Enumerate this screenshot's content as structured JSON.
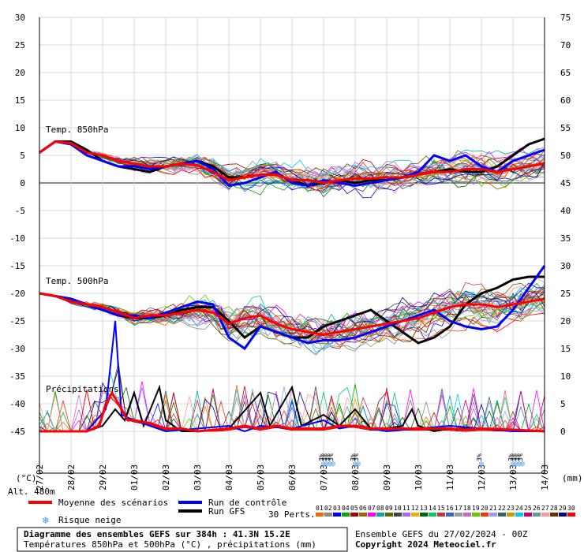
{
  "chart_data": {
    "type": "line",
    "title": "Diagramme des ensembles GEFS sur 384h : 41.3N 15.2E",
    "subtitle": "Températures 850hPa et 500hPa (°C) , précipitations (mm)",
    "run_info": "Ensemble GEFS du 27/02/2024 - 00Z",
    "copyright": "Copyright 2024 Meteociel.fr",
    "altitude": "Alt. 480m",
    "left_unit": "(°C)",
    "right_unit": "(mm)",
    "left_ticks": [
      "30",
      "25",
      "20",
      "15",
      "10",
      "5",
      "0",
      "-5",
      "-10",
      "-15",
      "-20",
      "-25",
      "-30",
      "-35",
      "-40",
      "-45"
    ],
    "right_ticks": [
      "75",
      "70",
      "65",
      "60",
      "55",
      "50",
      "45",
      "40",
      "35",
      "30",
      "25",
      "20",
      "15",
      "10",
      "5",
      "0"
    ],
    "ylim_temp": [
      -45,
      30
    ],
    "dates": [
      "27/02",
      "28/02",
      "29/02",
      "01/03",
      "02/03",
      "03/03",
      "04/03",
      "05/03",
      "06/03",
      "07/03",
      "08/03",
      "09/03",
      "10/03",
      "11/03",
      "12/03",
      "13/03",
      "14/03"
    ],
    "panel_labels": {
      "t850": "Temp. 850hPa",
      "t500": "Temp. 500hPa",
      "precip": "Précipitations"
    },
    "legend": {
      "mean": "Moyenne des scénarios",
      "control": "Run de contrôle",
      "gfs": "Run GFS",
      "snow": "Risque neige",
      "perts": "30 Perts."
    },
    "perturbation_numbers": [
      "01",
      "02",
      "03",
      "04",
      "05",
      "06",
      "07",
      "08",
      "09",
      "10",
      "11",
      "12",
      "13",
      "14",
      "15",
      "16",
      "17",
      "18",
      "19",
      "20",
      "21",
      "22",
      "23",
      "24",
      "25",
      "26",
      "27",
      "28",
      "29",
      "30"
    ],
    "perturbation_colors": [
      "#ff6600",
      "#888888",
      "#0000ff",
      "#00aa00",
      "#aa0000",
      "#996600",
      "#ff00ff",
      "#00aaaa",
      "#666600",
      "#444444",
      "#aa66ff",
      "#ffaa00",
      "#006600",
      "#00cc66",
      "#cc3333",
      "#3366cc",
      "#999999",
      "#cc66cc",
      "#66cc00",
      "#ff3300",
      "#9999ff",
      "#336666",
      "#cc9900",
      "#00ccff",
      "#cc0066",
      "#669999",
      "#ff9999",
      "#663300",
      "#000099",
      "#ff0000"
    ],
    "snow_badge": "3%",
    "snow_days": [
      9.0,
      9.1,
      9.2,
      9.3,
      10.0,
      10.1,
      14.0,
      15.0,
      15.1,
      15.2,
      15.3
    ],
    "series": [
      {
        "name": "Moyenne des scénarios",
        "color": "#ff0000",
        "t850": [
          [
            0,
            5.5
          ],
          [
            0.5,
            7.5
          ],
          [
            1,
            7.2
          ],
          [
            1.5,
            5.5
          ],
          [
            2,
            5
          ],
          [
            2.5,
            4
          ],
          [
            3,
            3.5
          ],
          [
            3.5,
            3
          ],
          [
            4,
            3
          ],
          [
            4.5,
            3.5
          ],
          [
            5,
            3.2
          ],
          [
            5.5,
            2
          ],
          [
            6,
            0.5
          ],
          [
            6.5,
            1
          ],
          [
            7,
            1.5
          ],
          [
            7.5,
            1.5
          ],
          [
            8,
            0.5
          ],
          [
            8.5,
            0.5
          ],
          [
            9,
            0
          ],
          [
            9.5,
            0.5
          ],
          [
            10,
            0.8
          ],
          [
            10.5,
            0.8
          ],
          [
            11,
            1
          ],
          [
            11.5,
            1
          ],
          [
            12,
            1.5
          ],
          [
            12.5,
            2
          ],
          [
            13,
            2
          ],
          [
            13.5,
            2.5
          ],
          [
            14,
            2.5
          ],
          [
            14.5,
            2
          ],
          [
            15,
            2.5
          ],
          [
            15.5,
            3
          ],
          [
            16,
            3.5
          ]
        ],
        "t500": [
          [
            0,
            -20
          ],
          [
            0.5,
            -20.5
          ],
          [
            1,
            -21.5
          ],
          [
            1.5,
            -22
          ],
          [
            2,
            -22.5
          ],
          [
            2.5,
            -23.5
          ],
          [
            3,
            -24.5
          ],
          [
            3.5,
            -24
          ],
          [
            4,
            -24
          ],
          [
            4.5,
            -23.5
          ],
          [
            5,
            -23
          ],
          [
            5.5,
            -23.5
          ],
          [
            6,
            -25.5
          ],
          [
            6.5,
            -24.5
          ],
          [
            7,
            -24
          ],
          [
            7.5,
            -25.5
          ],
          [
            8,
            -26.5
          ],
          [
            8.5,
            -27
          ],
          [
            9,
            -27.5
          ],
          [
            9.5,
            -27
          ],
          [
            10,
            -26.5
          ],
          [
            10.5,
            -26
          ],
          [
            11,
            -25.5
          ],
          [
            11.5,
            -25
          ],
          [
            12,
            -24.5
          ],
          [
            12.5,
            -23.5
          ],
          [
            13,
            -22.5
          ],
          [
            13.5,
            -22
          ],
          [
            14,
            -22
          ],
          [
            14.5,
            -22.5
          ],
          [
            15,
            -22
          ],
          [
            15.5,
            -21.5
          ],
          [
            16,
            -21
          ]
        ],
        "precip": [
          [
            0,
            0
          ],
          [
            1,
            0
          ],
          [
            1.5,
            0
          ],
          [
            1.9,
            1
          ],
          [
            2.1,
            5
          ],
          [
            2.3,
            7
          ],
          [
            2.5,
            5
          ],
          [
            2.8,
            2
          ],
          [
            3,
            2
          ],
          [
            3.5,
            1.5
          ],
          [
            4,
            0.5
          ],
          [
            4.5,
            0.5
          ],
          [
            5,
            0
          ],
          [
            6,
            0.5
          ],
          [
            6.5,
            1
          ],
          [
            7,
            0.5
          ],
          [
            7.5,
            1
          ],
          [
            8,
            0.5
          ],
          [
            9,
            0.5
          ],
          [
            9.5,
            1
          ],
          [
            10,
            1
          ],
          [
            10.5,
            0.5
          ],
          [
            11,
            0.5
          ],
          [
            12,
            0.5
          ],
          [
            12.5,
            0.5
          ],
          [
            13,
            0.5
          ],
          [
            13.5,
            0.3
          ],
          [
            14,
            0.5
          ],
          [
            15,
            0.3
          ],
          [
            16,
            0
          ]
        ]
      },
      {
        "name": "Run de contrôle",
        "color": "#0000ff",
        "t850": [
          [
            0,
            5.5
          ],
          [
            0.5,
            7.5
          ],
          [
            1,
            7
          ],
          [
            1.5,
            5
          ],
          [
            2,
            4
          ],
          [
            2.5,
            3
          ],
          [
            3,
            3
          ],
          [
            3.5,
            2.5
          ],
          [
            4,
            3
          ],
          [
            4.5,
            3.5
          ],
          [
            5,
            4
          ],
          [
            5.5,
            2.5
          ],
          [
            6,
            -0.5
          ],
          [
            6.5,
            0
          ],
          [
            7,
            1
          ],
          [
            7.5,
            2
          ],
          [
            8,
            0
          ],
          [
            8.5,
            -0.5
          ],
          [
            9,
            0.5
          ],
          [
            9.5,
            0
          ],
          [
            10,
            -0.5
          ],
          [
            10.5,
            0
          ],
          [
            11,
            0.5
          ],
          [
            11.5,
            1
          ],
          [
            12,
            2
          ],
          [
            12.5,
            5
          ],
          [
            13,
            4
          ],
          [
            13.5,
            5
          ],
          [
            14,
            3
          ],
          [
            14.5,
            2
          ],
          [
            15,
            4
          ],
          [
            15.5,
            5
          ],
          [
            16,
            6
          ]
        ],
        "t500": [
          [
            0,
            -20
          ],
          [
            0.5,
            -20.5
          ],
          [
            1,
            -21
          ],
          [
            1.5,
            -22
          ],
          [
            2,
            -23
          ],
          [
            2.5,
            -24
          ],
          [
            3,
            -24
          ],
          [
            3.5,
            -24.5
          ],
          [
            4,
            -23.5
          ],
          [
            4.5,
            -22.5
          ],
          [
            5,
            -21.5
          ],
          [
            5.5,
            -22
          ],
          [
            6,
            -28
          ],
          [
            6.5,
            -30
          ],
          [
            7,
            -26
          ],
          [
            7.5,
            -27
          ],
          [
            8,
            -28
          ],
          [
            8.5,
            -29
          ],
          [
            9,
            -28.5
          ],
          [
            9.5,
            -28.5
          ],
          [
            10,
            -28
          ],
          [
            10.5,
            -27
          ],
          [
            11,
            -26
          ],
          [
            11.5,
            -25
          ],
          [
            12,
            -24
          ],
          [
            12.5,
            -23
          ],
          [
            13,
            -25
          ],
          [
            13.5,
            -26
          ],
          [
            14,
            -26.5
          ],
          [
            14.5,
            -26
          ],
          [
            15,
            -23
          ],
          [
            15.5,
            -19
          ],
          [
            16,
            -15
          ]
        ],
        "precip": [
          [
            0,
            0
          ],
          [
            1.5,
            0
          ],
          [
            2.1,
            4
          ],
          [
            2.4,
            20
          ],
          [
            2.6,
            3
          ],
          [
            3,
            2
          ],
          [
            3.5,
            1
          ],
          [
            4,
            0
          ],
          [
            5,
            0.5
          ],
          [
            6,
            1
          ],
          [
            6.5,
            0
          ],
          [
            7,
            1
          ],
          [
            8,
            0.5
          ],
          [
            9,
            2
          ],
          [
            9.5,
            0.5
          ],
          [
            10,
            1
          ],
          [
            11,
            0
          ],
          [
            12,
            0.5
          ],
          [
            13,
            1
          ],
          [
            14,
            0.5
          ],
          [
            15,
            0
          ],
          [
            16,
            0
          ]
        ]
      },
      {
        "name": "Run GFS",
        "color": "#000000",
        "t850": [
          [
            0,
            5.5
          ],
          [
            0.5,
            7.5
          ],
          [
            1,
            7.5
          ],
          [
            1.5,
            6
          ],
          [
            2,
            4
          ],
          [
            2.5,
            3
          ],
          [
            3,
            2.5
          ],
          [
            3.5,
            2
          ],
          [
            4,
            3
          ],
          [
            4.5,
            3.5
          ],
          [
            5,
            4
          ],
          [
            5.5,
            3
          ],
          [
            6,
            1
          ],
          [
            6.5,
            1
          ],
          [
            7,
            1.5
          ],
          [
            7.5,
            1.5
          ],
          [
            8,
            0.5
          ],
          [
            8.5,
            -0.5
          ],
          [
            9,
            0
          ],
          [
            9.5,
            0.5
          ],
          [
            10,
            0
          ],
          [
            10.5,
            0.5
          ],
          [
            11,
            0.5
          ],
          [
            11.5,
            1
          ],
          [
            12,
            1.5
          ],
          [
            12.5,
            2
          ],
          [
            13,
            2.5
          ],
          [
            13.5,
            2
          ],
          [
            14,
            2
          ],
          [
            14.5,
            3
          ],
          [
            15,
            5
          ],
          [
            15.5,
            7
          ],
          [
            16,
            8
          ]
        ],
        "t500": [
          [
            0,
            -20
          ],
          [
            0.5,
            -20.5
          ],
          [
            1,
            -21
          ],
          [
            1.5,
            -22
          ],
          [
            2,
            -23
          ],
          [
            2.5,
            -24
          ],
          [
            3,
            -24.5
          ],
          [
            3.5,
            -24.5
          ],
          [
            4,
            -24
          ],
          [
            4.5,
            -23
          ],
          [
            5,
            -22.5
          ],
          [
            5.5,
            -22.5
          ],
          [
            6,
            -25
          ],
          [
            6.5,
            -28
          ],
          [
            7,
            -26
          ],
          [
            7.5,
            -27
          ],
          [
            8,
            -28
          ],
          [
            8.5,
            -28
          ],
          [
            9,
            -26
          ],
          [
            9.5,
            -25
          ],
          [
            10,
            -24
          ],
          [
            10.5,
            -23
          ],
          [
            11,
            -25
          ],
          [
            11.5,
            -27
          ],
          [
            12,
            -29
          ],
          [
            12.5,
            -28
          ],
          [
            13,
            -26
          ],
          [
            13.5,
            -22
          ],
          [
            14,
            -20
          ],
          [
            14.5,
            -19
          ],
          [
            15,
            -17.5
          ],
          [
            15.5,
            -17
          ],
          [
            16,
            -17
          ]
        ],
        "precip": [
          [
            0,
            0
          ],
          [
            1.5,
            0
          ],
          [
            2,
            1
          ],
          [
            2.4,
            4
          ],
          [
            2.7,
            2
          ],
          [
            3,
            7
          ],
          [
            3.3,
            1
          ],
          [
            3.8,
            8
          ],
          [
            4,
            2
          ],
          [
            4.5,
            0
          ],
          [
            5,
            0
          ],
          [
            6,
            0.5
          ],
          [
            7,
            7
          ],
          [
            7.3,
            1
          ],
          [
            8,
            8
          ],
          [
            8.3,
            1
          ],
          [
            9,
            3
          ],
          [
            9.5,
            1
          ],
          [
            10,
            4
          ],
          [
            10.5,
            0.5
          ],
          [
            11,
            0.5
          ],
          [
            11.5,
            1
          ],
          [
            11.8,
            4
          ],
          [
            12,
            1
          ],
          [
            12.5,
            0
          ],
          [
            13,
            0.5
          ],
          [
            14,
            0.5
          ],
          [
            15,
            0
          ],
          [
            16,
            0
          ]
        ]
      }
    ]
  }
}
